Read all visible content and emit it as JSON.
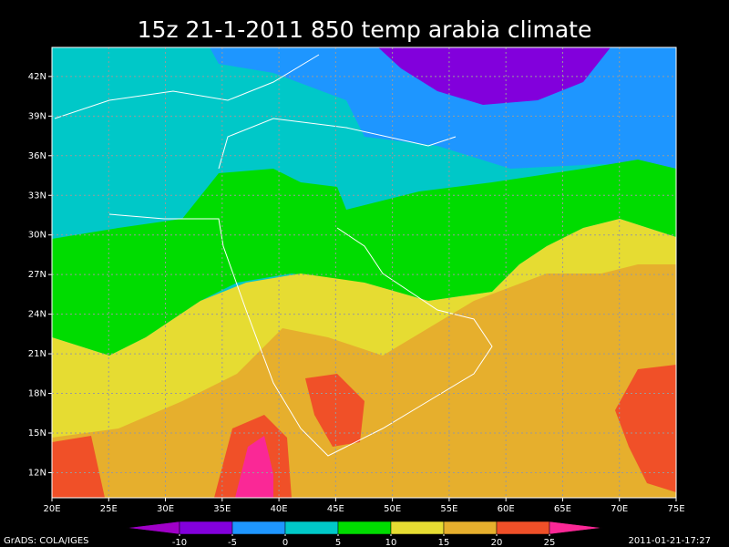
{
  "title": "15z 21-1-2011 850 temp arabia climate",
  "map": {
    "lon_range": [
      20,
      75
    ],
    "lat_range": [
      10.1,
      44.2
    ],
    "lon_ticks": [
      {
        "value": 20,
        "label": "20E"
      },
      {
        "value": 25,
        "label": "25E"
      },
      {
        "value": 30,
        "label": "30E"
      },
      {
        "value": 35,
        "label": "35E"
      },
      {
        "value": 40,
        "label": "40E"
      },
      {
        "value": 45,
        "label": "45E"
      },
      {
        "value": 50,
        "label": "50E"
      },
      {
        "value": 55,
        "label": "55E"
      },
      {
        "value": 60,
        "label": "60E"
      },
      {
        "value": 65,
        "label": "65E"
      },
      {
        "value": 70,
        "label": "70E"
      },
      {
        "value": 75,
        "label": "75E"
      }
    ],
    "lat_ticks": [
      {
        "value": 12,
        "label": "12N"
      },
      {
        "value": 15,
        "label": "15N"
      },
      {
        "value": 18,
        "label": "18N"
      },
      {
        "value": 21,
        "label": "21N"
      },
      {
        "value": 24,
        "label": "24N"
      },
      {
        "value": 27,
        "label": "27N"
      },
      {
        "value": 30,
        "label": "30N"
      },
      {
        "value": 33,
        "label": "33N"
      },
      {
        "value": 36,
        "label": "36N"
      },
      {
        "value": 39,
        "label": "39N"
      },
      {
        "value": 42,
        "label": "42N"
      }
    ]
  },
  "colorbar": {
    "levels": [
      -10,
      -5,
      0,
      5,
      10,
      15,
      20,
      25
    ],
    "colors": [
      "#a000c8",
      "#8200dc",
      "#1e96ff",
      "#00c8c8",
      "#00dc00",
      "#e6dc32",
      "#e6af2d",
      "#f05028",
      "#fa2896"
    ]
  },
  "footer": {
    "left": "GrADS: COLA/IGES",
    "right": "2011-01-21-17:27"
  }
}
